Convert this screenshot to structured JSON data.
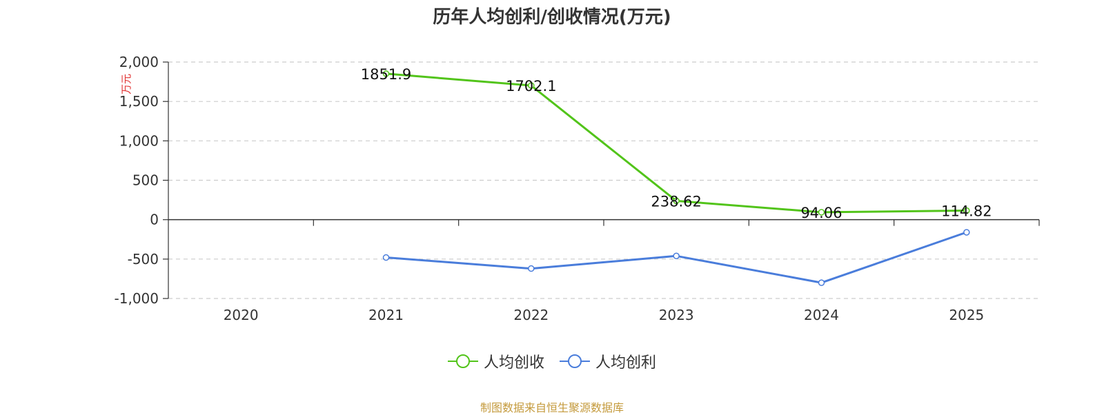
{
  "title": "历年人均创利/创收情况(万元)",
  "source": "制图数据来自恒生聚源数据库",
  "chart_data": {
    "type": "line",
    "title": "历年人均创利/创收情况(万元)",
    "ylabel": "万元",
    "ylabel_color": "#e03030",
    "categories": [
      "2020",
      "2021",
      "2022",
      "2023",
      "2024",
      "2025"
    ],
    "ylim": [
      -1000,
      2000
    ],
    "yticks": [
      2000,
      1500,
      1000,
      500,
      0,
      -500,
      -1000
    ],
    "ytick_labels": [
      "2,000",
      "1,500",
      "1,000",
      "500",
      "0",
      "-500",
      "-1,000"
    ],
    "grid": "dashed horizontal",
    "legend_position": "bottom-center",
    "series": [
      {
        "name": "人均创收",
        "color": "#52c41a",
        "values": [
          null,
          1851.9,
          1702.1,
          238.62,
          94.06,
          114.82
        ],
        "labels": [
          "",
          "1851.9",
          "1702.1",
          "238.62",
          "94.06",
          "114.82"
        ]
      },
      {
        "name": "人均创利",
        "color": "#4a7ddb",
        "values": [
          null,
          -480,
          -620,
          -460,
          -800,
          -160
        ],
        "labels": [
          "",
          "",
          "",
          "",
          "",
          ""
        ]
      }
    ]
  }
}
